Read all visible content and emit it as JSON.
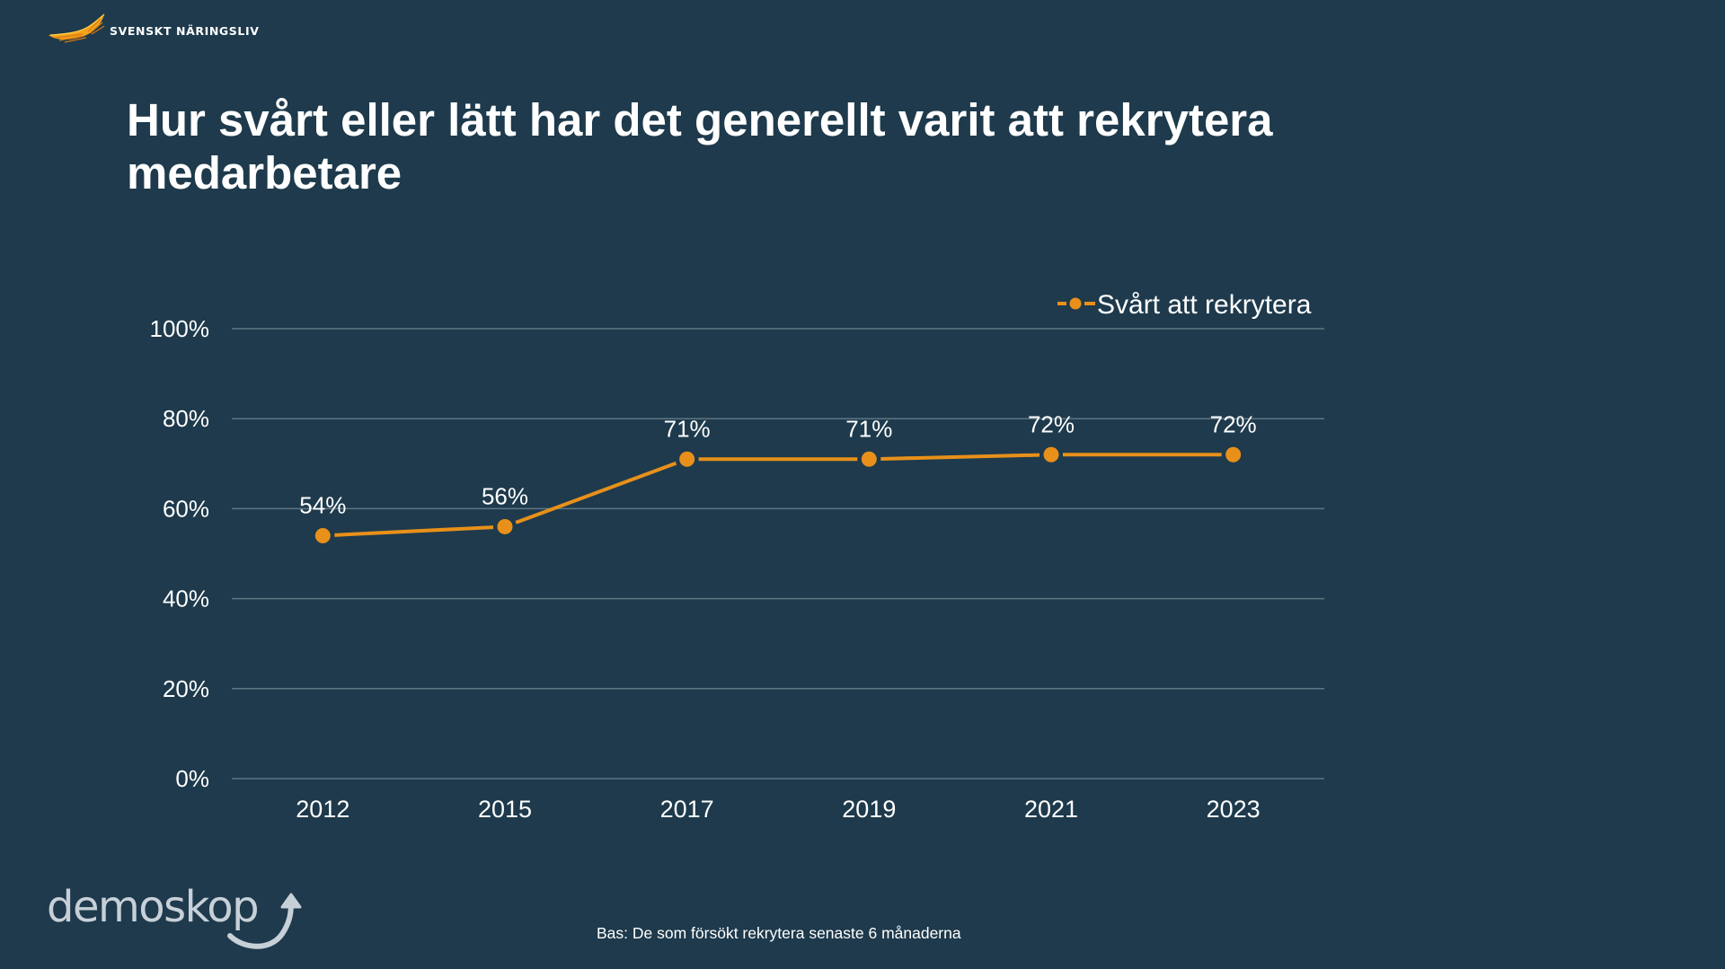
{
  "brand": {
    "name": "SVENSKT NÄRINGSLIV",
    "logo_icon": "wing-icon"
  },
  "title": "Hur svårt eller lätt har det generellt varit att rekrytera medarbetare",
  "footnote": "Bas: De som försökt rekrytera senaste 6 månaderna",
  "demoskop": {
    "name": "demoskop",
    "logo_icon": "curved-arrow-up-icon"
  },
  "colors": {
    "background": "#1e3a4c",
    "series": "#e8901a",
    "gridline": "#5f7683",
    "text": "#ffffff",
    "brand_orange": "#f2a21d"
  },
  "chart_data": {
    "type": "line",
    "title": "",
    "xlabel": "",
    "ylabel": "",
    "categories": [
      "2012",
      "2015",
      "2017",
      "2019",
      "2021",
      "2023"
    ],
    "series": [
      {
        "name": "Svårt att rekrytera",
        "values": [
          54,
          56,
          71,
          71,
          72,
          72
        ],
        "data_labels": [
          "54%",
          "56%",
          "71%",
          "71%",
          "72%",
          "72%"
        ],
        "marker": "circle"
      }
    ],
    "ylim": [
      0,
      100
    ],
    "yticks": [
      0,
      20,
      40,
      60,
      80,
      100
    ],
    "ytick_labels": [
      "0%",
      "20%",
      "40%",
      "60%",
      "80%",
      "100%"
    ],
    "grid": true,
    "legend": "top-right"
  }
}
